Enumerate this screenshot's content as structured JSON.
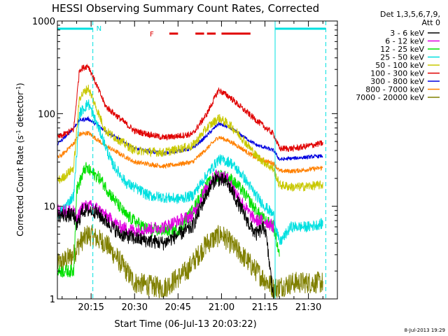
{
  "chart_data": {
    "type": "line",
    "title": "HESSI Observing Summary Count Rates, Corrected",
    "xlabel": "Start Time (06-Jul-13 20:03:22)",
    "ylabel_main": "Corrected Count Rate (s",
    "ylabel_sup1": "-1",
    "ylabel_mid": " detector",
    "ylabel_sup2": "-1",
    "ylabel_end": ")",
    "y_scale": "log",
    "ylim": [
      1,
      1000
    ],
    "xlim": [
      "20:03:22",
      "21:40:00"
    ],
    "y_ticks": [
      {
        "value": 1,
        "label": "1"
      },
      {
        "value": 10,
        "label": "10"
      },
      {
        "value": 100,
        "label": "100"
      },
      {
        "value": 1000,
        "label": "1000"
      }
    ],
    "x_ticks": [
      {
        "minute": 15,
        "label": "20:15"
      },
      {
        "minute": 30,
        "label": "20:30"
      },
      {
        "minute": 45,
        "label": "20:45"
      },
      {
        "minute": 60,
        "label": "21:00"
      },
      {
        "minute": 75,
        "label": "21:15"
      },
      {
        "minute": 90,
        "label": "21:30"
      }
    ],
    "legend_header": [
      "Det 1,3,5,6,7,9,",
      "Att 0"
    ],
    "legend_position": "right",
    "series": [
      {
        "name": "3 - 6 keV",
        "color": "#000000",
        "x": [
          0,
          9,
          10,
          12,
          16,
          20,
          25,
          30,
          40,
          50,
          55,
          58,
          62,
          65,
          70,
          72,
          75,
          78
        ],
        "y": [
          8,
          8,
          6,
          9,
          9,
          7,
          5,
          4.5,
          4,
          6,
          14,
          20,
          18,
          12,
          6,
          5,
          6,
          1
        ]
      },
      {
        "name": "6 - 12 keV",
        "color": "#e000e0",
        "x": [
          0,
          9,
          10,
          12,
          16,
          20,
          25,
          30,
          40,
          50,
          55,
          58,
          62,
          65,
          70,
          72,
          75,
          78
        ],
        "y": [
          9,
          9,
          7,
          10,
          10,
          8,
          6,
          5.5,
          6,
          8,
          16,
          22,
          20,
          14,
          8,
          7,
          7,
          6
        ]
      },
      {
        "name": "12 - 25 keV",
        "color": "#00e000",
        "x": [
          0,
          9,
          10,
          13,
          18,
          22,
          27,
          35,
          45,
          50,
          55,
          59,
          63,
          67,
          72,
          75,
          78,
          80
        ],
        "y": [
          2,
          2,
          15,
          26,
          20,
          13,
          8,
          5.5,
          5.5,
          9,
          17,
          22,
          20,
          15,
          9,
          7,
          6,
          3
        ]
      },
      {
        "name": "25 - 50 keV",
        "color": "#00e0e0",
        "x": [
          0,
          5,
          9,
          11,
          14,
          18,
          22,
          27,
          35,
          45,
          50,
          55,
          59,
          63,
          67,
          72,
          75,
          78,
          80,
          84,
          90,
          95
        ],
        "y": [
          6,
          9,
          13,
          100,
          130,
          65,
          30,
          18,
          13,
          12,
          13,
          22,
          32,
          30,
          22,
          13,
          10,
          8,
          4,
          6,
          6,
          6.5
        ]
      },
      {
        "name": "50 - 100 keV",
        "color": "#c8c800",
        "x": [
          0,
          5,
          9,
          11,
          14,
          20,
          30,
          40,
          50,
          55,
          59,
          63,
          67,
          72,
          78,
          80,
          85,
          95
        ],
        "y": [
          17,
          20,
          26,
          150,
          190,
          65,
          40,
          38,
          45,
          70,
          90,
          75,
          55,
          35,
          25,
          17,
          16,
          17
        ]
      },
      {
        "name": "100 - 300 keV",
        "color": "#e00000",
        "x": [
          0,
          5,
          9,
          11,
          14,
          20,
          30,
          40,
          50,
          55,
          59,
          63,
          67,
          72,
          78,
          80,
          85,
          95
        ],
        "y": [
          50,
          58,
          68,
          300,
          330,
          120,
          65,
          55,
          60,
          100,
          180,
          150,
          115,
          85,
          60,
          42,
          42,
          48
        ]
      },
      {
        "name": "300 - 800 keV",
        "color": "#0000e0",
        "x": [
          0,
          5,
          9,
          11,
          14,
          20,
          30,
          40,
          50,
          55,
          59,
          63,
          67,
          72,
          78,
          80,
          85,
          95
        ],
        "y": [
          38,
          52,
          70,
          85,
          88,
          65,
          42,
          37,
          42,
          58,
          78,
          70,
          58,
          46,
          40,
          32,
          33,
          35
        ]
      },
      {
        "name": "800 - 7000 keV",
        "color": "#ff8000",
        "x": [
          0,
          5,
          9,
          11,
          14,
          20,
          30,
          40,
          50,
          55,
          59,
          63,
          67,
          72,
          78,
          80,
          85,
          95
        ],
        "y": [
          28,
          36,
          48,
          60,
          62,
          45,
          30,
          27,
          30,
          42,
          56,
          50,
          42,
          33,
          29,
          24,
          24,
          26
        ]
      },
      {
        "name": "7000 - 20000 keV",
        "color": "#808000",
        "x": [
          0,
          5,
          9,
          11,
          14,
          20,
          25,
          30,
          40,
          48,
          55,
          60,
          63,
          67,
          72,
          78,
          85,
          95
        ],
        "y": [
          2,
          2.5,
          3,
          4,
          5,
          4,
          2.5,
          1.5,
          1.3,
          2,
          4,
          5,
          4,
          3,
          2,
          1.3,
          1.5,
          1.5
        ]
      }
    ],
    "annotations": {
      "bar_color": "#00e0e0",
      "night_label": "N",
      "flare_label": "F",
      "flare_color": "#e00000"
    },
    "timestamp": "8-Jul-2013 19:29"
  }
}
